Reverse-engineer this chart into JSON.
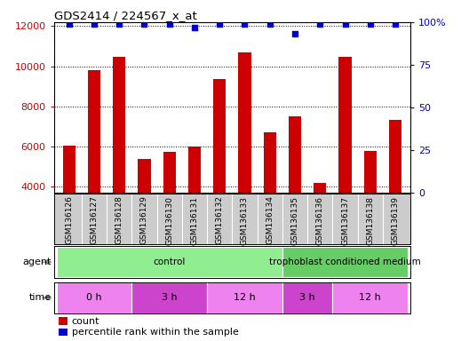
{
  "title": "GDS2414 / 224567_x_at",
  "samples": [
    "GSM136126",
    "GSM136127",
    "GSM136128",
    "GSM136129",
    "GSM136130",
    "GSM136131",
    "GSM136132",
    "GSM136133",
    "GSM136134",
    "GSM136135",
    "GSM136136",
    "GSM136137",
    "GSM136138",
    "GSM136139"
  ],
  "counts": [
    6050,
    9800,
    10450,
    5400,
    5750,
    6000,
    9350,
    10700,
    6700,
    7500,
    4200,
    10450,
    5800,
    7350
  ],
  "percentile_ranks": [
    99,
    99,
    99,
    99,
    99,
    97,
    99,
    99,
    99,
    93,
    99,
    99,
    99,
    99
  ],
  "ylim_left": [
    3700,
    12200
  ],
  "ylim_right": [
    0,
    100
  ],
  "yticks_left": [
    4000,
    6000,
    8000,
    10000,
    12000
  ],
  "yticks_right": [
    0,
    25,
    50,
    75,
    100
  ],
  "bar_color": "#cc0000",
  "dot_color": "#0000cc",
  "bar_width": 0.5,
  "agent_groups": [
    {
      "label": "control",
      "start": 0,
      "end": 9,
      "color": "#90ee90"
    },
    {
      "label": "trophoblast conditioned medium",
      "start": 9,
      "end": 14,
      "color": "#66cc66"
    }
  ],
  "time_groups": [
    {
      "label": "0 h",
      "start": 0,
      "end": 3,
      "color": "#ee82ee"
    },
    {
      "label": "3 h",
      "start": 3,
      "end": 6,
      "color": "#cc44cc"
    },
    {
      "label": "12 h",
      "start": 6,
      "end": 9,
      "color": "#ee82ee"
    },
    {
      "label": "3 h",
      "start": 9,
      "end": 11,
      "color": "#cc44cc"
    },
    {
      "label": "12 h",
      "start": 11,
      "end": 14,
      "color": "#ee82ee"
    }
  ],
  "background_color": "#ffffff",
  "tick_area_bg": "#cccccc",
  "fig_width": 5.28,
  "fig_height": 3.84,
  "dpi": 100
}
